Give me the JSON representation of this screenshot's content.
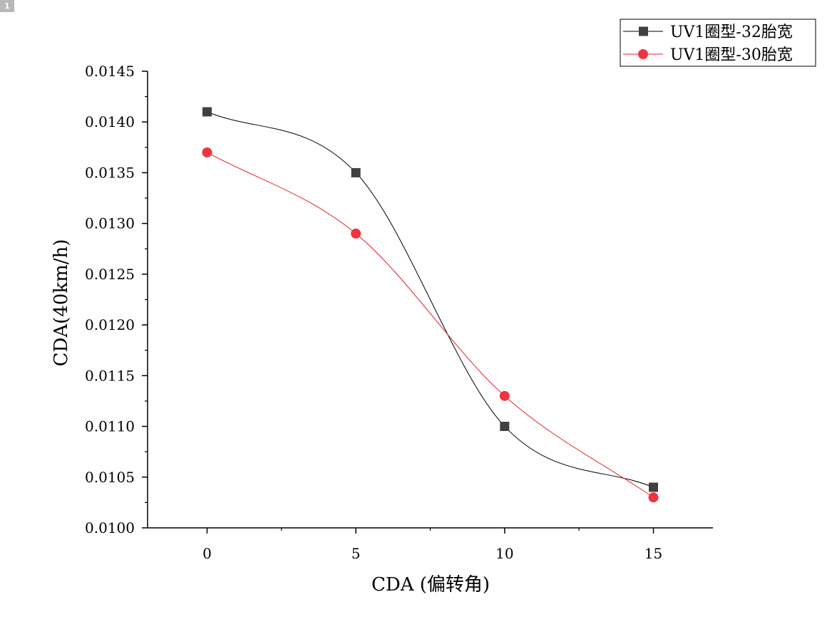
{
  "badge": "1",
  "chart_data": {
    "type": "line",
    "xlabel": "CDA (偏转角)",
    "ylabel": "CDA(40km/h)",
    "x": [
      0,
      5,
      10,
      15
    ],
    "xlim": [
      -2,
      17
    ],
    "ylim": [
      0.01,
      0.0145
    ],
    "x_ticks": [
      0,
      5,
      10,
      15
    ],
    "x_tick_labels": [
      "0",
      "5",
      "10",
      "15"
    ],
    "y_ticks": [
      0.01,
      0.0105,
      0.011,
      0.0115,
      0.012,
      0.0125,
      0.013,
      0.0135,
      0.014,
      0.0145
    ],
    "y_tick_labels": [
      "0.0100",
      "0.0105",
      "0.0110",
      "0.0115",
      "0.0120",
      "0.0125",
      "0.0130",
      "0.0135",
      "0.0140",
      "0.0145"
    ],
    "legend_position": "top-right",
    "grid": false,
    "series": [
      {
        "name": "UV1圈型-32胎宽",
        "values": [
          0.0141,
          0.0135,
          0.011,
          0.0104
        ],
        "color": "#000000",
        "marker_color": "#404040",
        "marker": "square"
      },
      {
        "name": "UV1圈型-30胎宽",
        "values": [
          0.0137,
          0.0129,
          0.0113,
          0.0103
        ],
        "color": "#e5212b",
        "marker_color": "#ef3340",
        "marker": "circle"
      }
    ]
  }
}
